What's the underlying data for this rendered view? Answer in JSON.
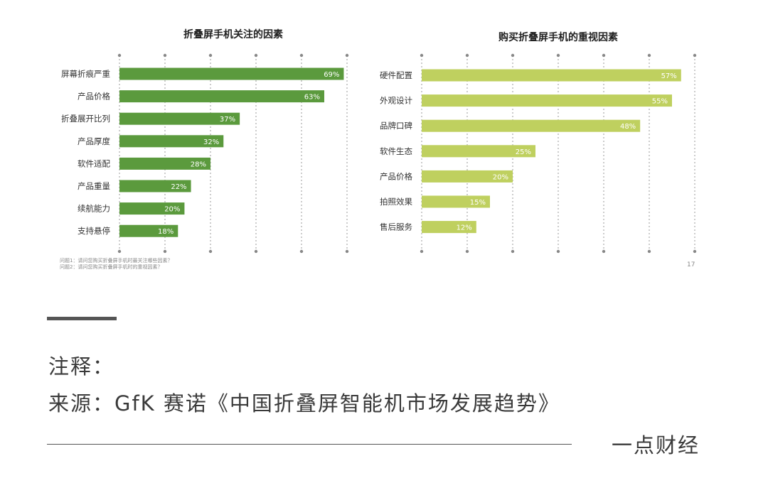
{
  "chart_data": [
    {
      "type": "bar",
      "orientation": "horizontal",
      "title": "折叠屏手机关注的因素",
      "categories": [
        "屏幕折痕严重",
        "产品价格",
        "折叠展开比列",
        "产品厚度",
        "软件适配",
        "产品重量",
        "续航能力",
        "支持悬停"
      ],
      "values": [
        69,
        63,
        37,
        32,
        28,
        22,
        20,
        18
      ],
      "value_labels": [
        "69%",
        "63%",
        "37%",
        "32%",
        "28%",
        "22%",
        "20%",
        "18%"
      ],
      "xlim": [
        0,
        70
      ],
      "grid": true,
      "bar_color": "#5b9a3d"
    },
    {
      "type": "bar",
      "orientation": "horizontal",
      "title": "购买折叠屏手机的重视因素",
      "categories": [
        "硬件配置",
        "外观设计",
        "品牌口碑",
        "软件生态",
        "产品价格",
        "拍照效果",
        "售后服务"
      ],
      "values": [
        57,
        55,
        48,
        25,
        20,
        15,
        12
      ],
      "value_labels": [
        "57%",
        "55%",
        "48%",
        "25%",
        "20%",
        "15%",
        "12%"
      ],
      "xlim": [
        0,
        60
      ],
      "grid": true,
      "bar_color": "#bfd05f"
    }
  ],
  "footnotes": [
    "问题1：请问您购买折叠屏手机时最关注哪些因素？",
    "问题2：请问您购买折叠屏手机时的重视因素？"
  ],
  "page_number": "17",
  "note_label": "注释：",
  "source": "来源：GfK 赛诺《中国折叠屏智能机市场发展趋势》",
  "brand": "一点财经"
}
